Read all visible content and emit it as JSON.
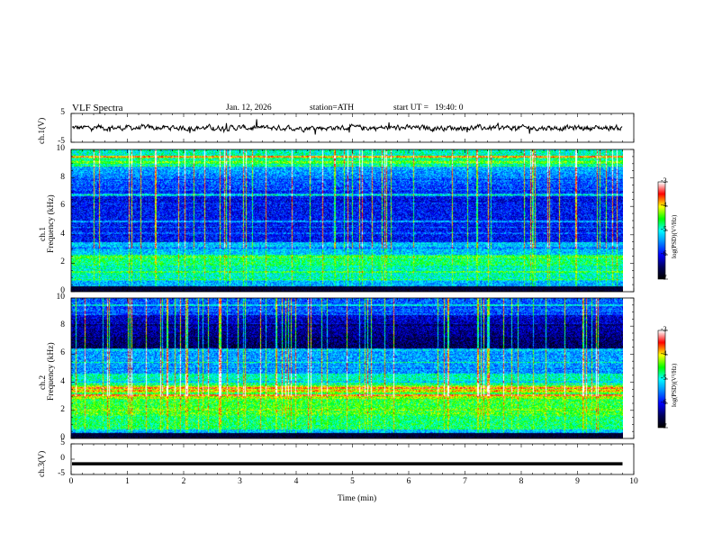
{
  "header": {
    "title": "VLF Spectra",
    "date": "Jan. 12, 2026",
    "station": "station=ATH",
    "start_ut": "start UT =   19:40: 0"
  },
  "colors": {
    "spectrum_dark": "#000000",
    "spectrum_blue": "#0000ff",
    "spectrum_cyan": "#00ffff",
    "spectrum_green": "#00ff00",
    "spectrum_yellow": "#ffff00",
    "spectrum_red": "#ff0000",
    "spectrum_white": "#ffffff"
  },
  "chart_data": [
    {
      "type": "line",
      "name": "ch1-waveform",
      "ylabel": "ch.1(V)",
      "ylim": [
        -5,
        5
      ],
      "y_ticks": [
        "5",
        "-5"
      ],
      "x_range_min": [
        0,
        9.8
      ],
      "baseline": 0,
      "description_values": "noisy signal fluctuating roughly between -1 and +1 V"
    },
    {
      "type": "heatmap",
      "name": "ch1-spectrogram",
      "ylabel": "Frequency (kHz)",
      "channel_label": "ch.1",
      "ylim": [
        0,
        10
      ],
      "y_ticks": [
        "0",
        "2",
        "4",
        "6",
        "8",
        "10"
      ],
      "colorbar": {
        "label": "log(PSD)(V²/Hz)",
        "ticks": [
          "-3",
          "-4",
          "-5",
          "-6",
          "-7"
        ],
        "range": [
          -7,
          -3
        ]
      }
    },
    {
      "type": "heatmap",
      "name": "ch2-spectrogram",
      "ylabel": "Frequency (kHz)",
      "channel_label": "ch.2",
      "ylim": [
        0,
        10
      ],
      "y_ticks": [
        "0",
        "2",
        "4",
        "6",
        "8",
        "10"
      ],
      "colorbar": {
        "label": "log(PSD)(V²/Hz)",
        "ticks": [
          "-3",
          "-4",
          "-5",
          "-6",
          "-7"
        ],
        "range": [
          -7,
          -3
        ]
      }
    },
    {
      "type": "line",
      "name": "ch3-waveform",
      "ylabel": "ch.3(V)",
      "ylim": [
        -5,
        5
      ],
      "y_ticks": [
        "5",
        "0",
        "-5"
      ],
      "baseline": -1.5
    }
  ],
  "x_axis": {
    "label": "Time (min)",
    "ticks": [
      "0",
      "1",
      "2",
      "3",
      "4",
      "5",
      "6",
      "7",
      "8",
      "9",
      "10"
    ],
    "range": [
      0,
      10
    ],
    "data_end": 9.8
  }
}
